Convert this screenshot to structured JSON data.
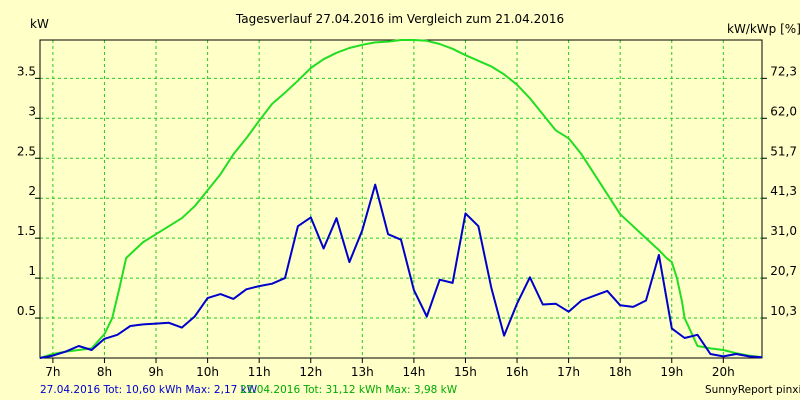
{
  "chart_data": {
    "type": "line",
    "title": "Tagesverlauf 27.04.2016 im Vergleich zum 21.04.2016",
    "ylabel_left": "kW",
    "ylabel_right": "kW/kWp [%]",
    "xlim": [
      6.75,
      20.75
    ],
    "ylim": [
      0,
      3.98
    ],
    "x_ticks": [
      7,
      8,
      9,
      10,
      11,
      12,
      13,
      14,
      15,
      16,
      17,
      18,
      19,
      20
    ],
    "x_tick_labels": [
      "7h",
      "8h",
      "9h",
      "10h",
      "11h",
      "12h",
      "13h",
      "14h",
      "15h",
      "16h",
      "17h",
      "18h",
      "19h",
      "20h"
    ],
    "y_ticks_left": [
      0.5,
      1,
      1.5,
      2,
      2.5,
      3,
      3.5
    ],
    "y_tick_labels_left": [
      "0.5",
      "1",
      "1.5",
      "2",
      "2.5",
      "3",
      "3.5"
    ],
    "y_ticks_right": [
      0.5,
      1,
      1.5,
      2,
      2.5,
      3,
      3.5
    ],
    "y_tick_labels_right": [
      "10,3",
      "20,7",
      "31,0",
      "41,3",
      "51,7",
      "62,0",
      "72,3"
    ],
    "grid": true,
    "series": [
      {
        "name": "27.04.2016",
        "color": "#0000cc",
        "x": [
          6.75,
          7.0,
          7.25,
          7.5,
          7.75,
          8.0,
          8.25,
          8.5,
          8.75,
          9.0,
          9.25,
          9.5,
          9.75,
          10.0,
          10.25,
          10.5,
          10.75,
          11.0,
          11.25,
          11.5,
          11.75,
          12.0,
          12.25,
          12.5,
          12.75,
          13.0,
          13.25,
          13.5,
          13.75,
          14.0,
          14.25,
          14.5,
          14.75,
          15.0,
          15.25,
          15.5,
          15.75,
          16.0,
          16.25,
          16.5,
          16.75,
          17.0,
          17.25,
          17.5,
          17.75,
          18.0,
          18.25,
          18.5,
          18.75,
          19.0,
          19.25,
          19.5,
          19.75,
          20.0,
          20.25,
          20.5,
          20.75
        ],
        "y": [
          0.0,
          0.03,
          0.08,
          0.15,
          0.1,
          0.24,
          0.29,
          0.4,
          0.42,
          0.43,
          0.44,
          0.38,
          0.52,
          0.75,
          0.8,
          0.74,
          0.86,
          0.9,
          0.93,
          1.0,
          1.65,
          1.76,
          1.37,
          1.75,
          1.2,
          1.6,
          2.17,
          1.55,
          1.48,
          0.85,
          0.52,
          0.98,
          0.94,
          1.81,
          1.65,
          0.88,
          0.28,
          0.68,
          1.01,
          0.67,
          0.68,
          0.58,
          0.72,
          0.78,
          0.84,
          0.66,
          0.64,
          0.72,
          1.29,
          0.37,
          0.25,
          0.29,
          0.05,
          0.02,
          0.05,
          0.02,
          0.01
        ]
      },
      {
        "name": "21.04.2016",
        "color": "#22dd22",
        "x": [
          6.75,
          7.0,
          7.25,
          7.5,
          7.75,
          8.0,
          8.15,
          8.3,
          8.42,
          8.5,
          8.75,
          9.0,
          9.25,
          9.5,
          9.75,
          10.0,
          10.25,
          10.5,
          10.75,
          11.0,
          11.25,
          11.5,
          11.75,
          12.0,
          12.25,
          12.5,
          12.75,
          13.0,
          13.25,
          13.5,
          13.75,
          14.0,
          14.25,
          14.5,
          14.75,
          15.0,
          15.25,
          15.5,
          15.75,
          16.0,
          16.25,
          16.5,
          16.75,
          17.0,
          17.25,
          17.5,
          17.75,
          18.0,
          18.25,
          18.5,
          18.75,
          18.9,
          19.0,
          19.1,
          19.2,
          19.25,
          19.5,
          19.75,
          20.0,
          20.25,
          20.5,
          20.75
        ],
        "y": [
          0.0,
          0.05,
          0.08,
          0.1,
          0.12,
          0.3,
          0.5,
          0.9,
          1.25,
          1.3,
          1.45,
          1.55,
          1.65,
          1.75,
          1.9,
          2.1,
          2.3,
          2.55,
          2.75,
          2.97,
          3.18,
          3.32,
          3.47,
          3.63,
          3.74,
          3.82,
          3.88,
          3.92,
          3.95,
          3.96,
          3.98,
          3.98,
          3.97,
          3.93,
          3.87,
          3.79,
          3.72,
          3.65,
          3.55,
          3.42,
          3.25,
          3.05,
          2.85,
          2.75,
          2.55,
          2.3,
          2.05,
          1.8,
          1.65,
          1.5,
          1.35,
          1.25,
          1.2,
          1.0,
          0.7,
          0.5,
          0.15,
          0.12,
          0.1,
          0.06,
          0.03,
          0.01
        ]
      }
    ],
    "summary": [
      {
        "text": "27.04.2016 Tot: 10,60 kWh Max: 2,17 kW",
        "color": "#0000cc"
      },
      {
        "text": "21.04.2016 Tot: 31,12 kWh Max: 3,98 kW",
        "color": "#00aa00"
      }
    ],
    "credit": "SunnyReport pinxit"
  }
}
